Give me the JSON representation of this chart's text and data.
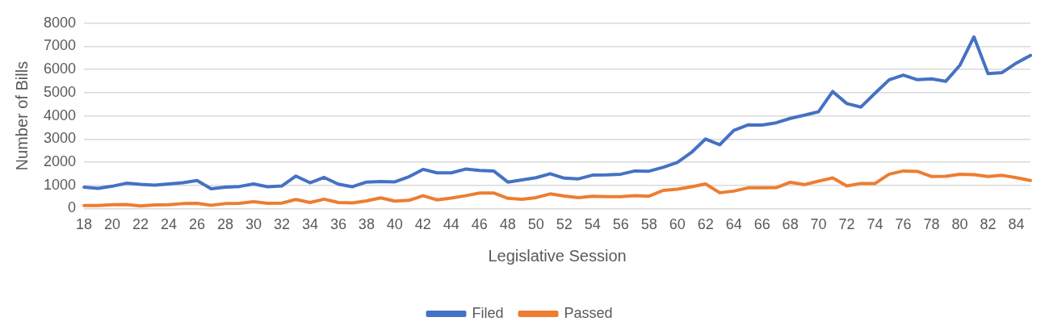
{
  "chart_data": {
    "type": "line",
    "xlabel": "Legislative Session",
    "ylabel": "Number of Bills",
    "categories": [
      "18",
      null,
      "20",
      null,
      "22",
      null,
      "24",
      null,
      "26",
      null,
      "28",
      null,
      "30",
      null,
      "32",
      null,
      "34",
      null,
      "36",
      null,
      "38",
      null,
      "40",
      null,
      "42",
      null,
      "44",
      null,
      "46",
      null,
      "48",
      null,
      "50",
      null,
      "52",
      null,
      "54",
      null,
      "56",
      null,
      "58",
      null,
      "60",
      null,
      "62",
      null,
      "64",
      null,
      "66",
      null,
      "68",
      null,
      "70",
      null,
      "72",
      null,
      "74",
      null,
      "76",
      null,
      "78",
      null,
      "80",
      null,
      "82",
      null,
      "84",
      null
    ],
    "series": [
      {
        "name": "Filed",
        "color": "#4472c4",
        "values": [
          920,
          870,
          960,
          1090,
          1040,
          1010,
          1060,
          1110,
          1210,
          850,
          920,
          950,
          1060,
          940,
          970,
          1400,
          1110,
          1340,
          1050,
          940,
          1140,
          1160,
          1150,
          1370,
          1690,
          1540,
          1540,
          1700,
          1640,
          1620,
          1140,
          1230,
          1330,
          1500,
          1310,
          1280,
          1440,
          1450,
          1480,
          1620,
          1610,
          1780,
          1990,
          2420,
          3000,
          2750,
          3370,
          3610,
          3600,
          3700,
          3890,
          4030,
          4180,
          5050,
          4530,
          4380,
          4980,
          5560,
          5760,
          5560,
          5600,
          5490,
          6180,
          7410,
          5820,
          5870,
          6280,
          6610
        ]
      },
      {
        "name": "Passed",
        "color": "#ed7d31",
        "values": [
          130,
          130,
          160,
          170,
          110,
          150,
          160,
          210,
          220,
          140,
          210,
          220,
          290,
          220,
          230,
          390,
          260,
          400,
          260,
          240,
          330,
          460,
          320,
          350,
          550,
          370,
          450,
          550,
          670,
          670,
          440,
          400,
          470,
          630,
          540,
          470,
          530,
          510,
          510,
          550,
          530,
          780,
          830,
          940,
          1060,
          680,
          750,
          890,
          890,
          900,
          1130,
          1030,
          1180,
          1320,
          970,
          1080,
          1080,
          1480,
          1620,
          1600,
          1380,
          1390,
          1480,
          1460,
          1380,
          1430,
          1330,
          1210
        ]
      }
    ],
    "ylim": [
      0,
      8000
    ],
    "yticks": [
      0,
      1000,
      2000,
      3000,
      4000,
      5000,
      6000,
      7000,
      8000
    ],
    "grid": "y",
    "legend": "bottom",
    "marker": "none",
    "line_style": "solid"
  }
}
